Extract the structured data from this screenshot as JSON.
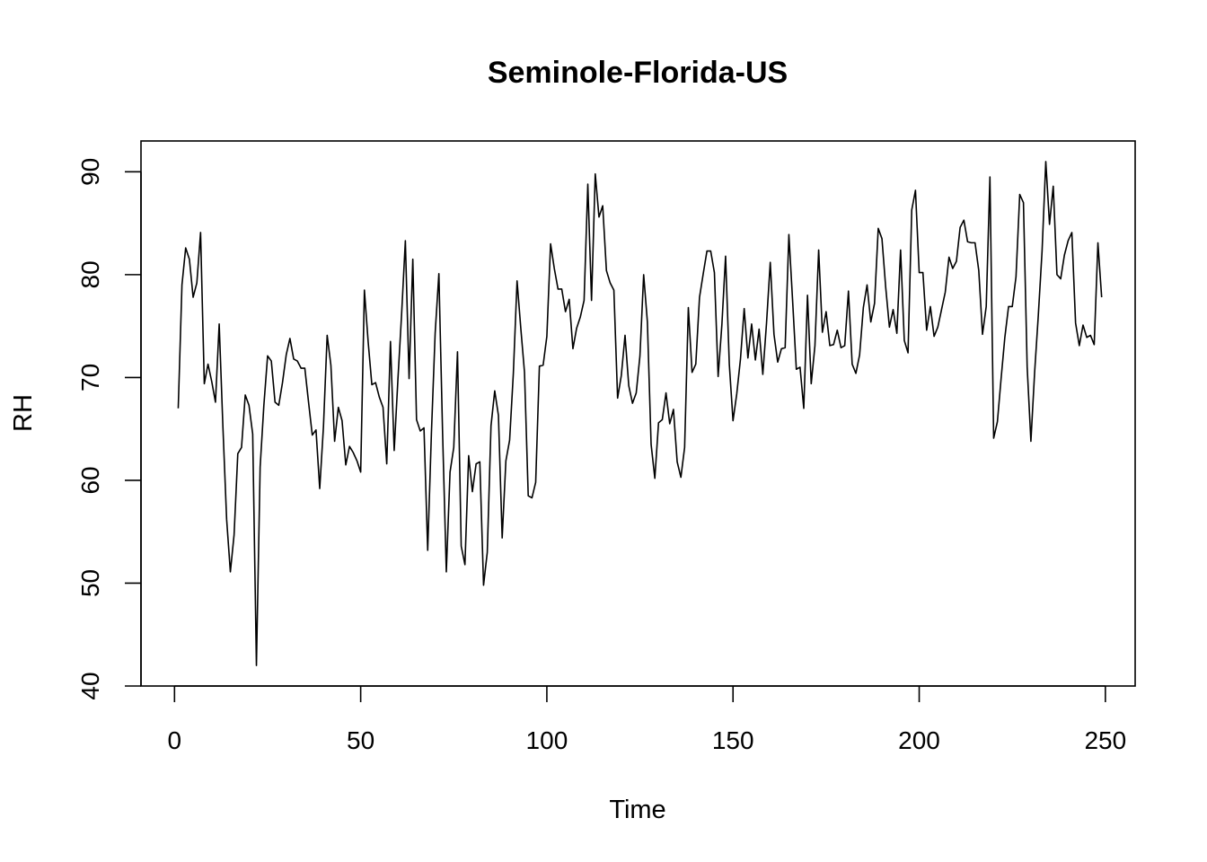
{
  "chart_data": {
    "type": "line",
    "title": "Seminole-Florida-US",
    "xlabel": "Time",
    "ylabel": "RH",
    "xlim": [
      -9,
      258
    ],
    "ylim": [
      40,
      93
    ],
    "x_ticks": [
      0,
      50,
      100,
      150,
      200,
      250
    ],
    "y_ticks": [
      40,
      50,
      60,
      70,
      80,
      90
    ],
    "grid": false,
    "legend": "none",
    "line_color": "#000000",
    "x_start": 1,
    "values": [
      67,
      79,
      82.6,
      81.5,
      77.8,
      79.2,
      84.1,
      69.4,
      71.3,
      69.6,
      67.6,
      75.2,
      65.2,
      56.2,
      51.1,
      54.7,
      62.6,
      63.2,
      68.3,
      67.3,
      64.5,
      42,
      61.3,
      67.3,
      72.1,
      71.6,
      67.6,
      67.3,
      69.5,
      72.2,
      73.8,
      71.8,
      71.6,
      70.9,
      70.9,
      67.6,
      64.4,
      64.9,
      59.2,
      65.2,
      74.1,
      71.2,
      63.8,
      67.1,
      65.8,
      61.5,
      63.3,
      62.7,
      61.9,
      60.8,
      78.5,
      73.5,
      69.3,
      69.5,
      68.1,
      67.1,
      61.6,
      73.5,
      62.9,
      69.8,
      76.2,
      83.3,
      69.9,
      81.5,
      65.9,
      64.8,
      65.1,
      53.2,
      64.6,
      74.3,
      80.1,
      64.6,
      51.1,
      60.8,
      63.2,
      72.5,
      53.6,
      51.8,
      62.4,
      58.9,
      61.6,
      61.8,
      49.8,
      53,
      65.3,
      68.7,
      66.3,
      54.4,
      61.9,
      63.9,
      70.4,
      79.4,
      74.8,
      70.5,
      58.5,
      58.3,
      59.8,
      71.1,
      71.2,
      74,
      83,
      80.6,
      78.6,
      78.6,
      76.4,
      77.6,
      72.8,
      74.8,
      75.9,
      77.5,
      88.8,
      77.5,
      89.8,
      85.6,
      86.7,
      80.4,
      79.2,
      78.5,
      68,
      70.2,
      74.1,
      69.2,
      67.5,
      68.5,
      72.1,
      80,
      75.4,
      63.5,
      60.2,
      65.6,
      65.9,
      68.5,
      65.5,
      66.9,
      61.8,
      60.3,
      63.2,
      76.8,
      70.5,
      71.3,
      77.8,
      80.1,
      82.3,
      82.3,
      80.2,
      70.1,
      75.1,
      81.8,
      71.3,
      65.8,
      68.4,
      71.8,
      76.7,
      71.9,
      75.2,
      71.7,
      74.7,
      70.3,
      75.3,
      81.2,
      74.2,
      71.5,
      72.8,
      72.9,
      83.9,
      77.5,
      70.8,
      71,
      67,
      78,
      69.4,
      73.1,
      82.4,
      74.4,
      76.4,
      73.1,
      73.2,
      74.6,
      72.9,
      73.1,
      78.4,
      71.3,
      70.4,
      72.2,
      76.8,
      79,
      75.4,
      77.2,
      84.5,
      83.5,
      78.8,
      74.9,
      76.6,
      74.3,
      82.4,
      73.6,
      72.4,
      86.3,
      88.2,
      80.2,
      80.2,
      74.6,
      76.9,
      74,
      74.9,
      76.6,
      78.3,
      81.7,
      80.6,
      81.3,
      84.6,
      85.3,
      83.2,
      83.1,
      83.1,
      80.4,
      74.2,
      76.9,
      89.5,
      64.1,
      65.7,
      69.9,
      73.9,
      76.9,
      76.9,
      79.8,
      87.8,
      87,
      71,
      63.8,
      70.5,
      76.1,
      82.3,
      91,
      84.9,
      88.6,
      80,
      79.6,
      81.9,
      83.3,
      84.1,
      75.3,
      73.1,
      75.1,
      73.9,
      74.1,
      73.2,
      83.1,
      77.8
    ]
  }
}
